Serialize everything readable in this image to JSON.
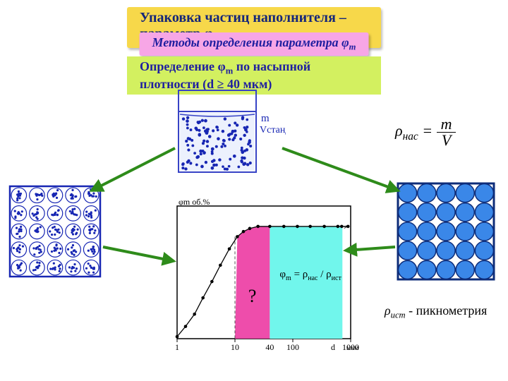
{
  "header": {
    "title": "Упаковка частиц наполнителя  – параметр φ",
    "title_sub": "m",
    "subtitle": "Методы определения параметра φ",
    "subtitle_sub": "m",
    "method_a": "Определение φ",
    "method_sub": "m",
    "method_b": " по насыпной плотности (d ≥ 40 мкм)"
  },
  "beaker": {
    "label_mass": "m",
    "label_vol": "Vстанд",
    "fill_color": "#ffffff",
    "liquid_color": "rgba(200,215,250,.35)",
    "dot_color": "#1726b3",
    "border": "#3743c6"
  },
  "formula_top": {
    "lhs": "ρ",
    "lhs_sub": "нас",
    "rhs_top": "m",
    "rhs_bot": "V"
  },
  "formula_bottom": {
    "lhs": "ρ",
    "lhs_sub": "ист",
    "note": " - пикнометрия"
  },
  "left_panel": {
    "cluster_count": 25,
    "grid": 5,
    "cluster_color": "#1726b3",
    "border": "#1726b3"
  },
  "right_panel": {
    "grid": 5,
    "circle_fill": "#3a87e8",
    "circle_stroke": "#0e2d7a",
    "border": "#0e2d7a",
    "bg": "#ffffff"
  },
  "chart": {
    "type": "line-log-x",
    "x_label": "d",
    "x_unit": "мкм",
    "y_label": "φm  об.%",
    "x_ticks": [
      1,
      10,
      100,
      1000
    ],
    "x_extra_tick": 40,
    "y_range": [
      0,
      65
    ],
    "plateau_y": 55,
    "points": [
      {
        "x": 1,
        "y": 1
      },
      {
        "x": 1.4,
        "y": 6
      },
      {
        "x": 2,
        "y": 12
      },
      {
        "x": 2.8,
        "y": 20
      },
      {
        "x": 4,
        "y": 28
      },
      {
        "x": 5.6,
        "y": 36
      },
      {
        "x": 8,
        "y": 44
      },
      {
        "x": 11,
        "y": 50
      },
      {
        "x": 14,
        "y": 52.5
      },
      {
        "x": 18,
        "y": 54
      },
      {
        "x": 25,
        "y": 55
      },
      {
        "x": 40,
        "y": 55
      },
      {
        "x": 70,
        "y": 55
      },
      {
        "x": 120,
        "y": 55
      },
      {
        "x": 200,
        "y": 55
      },
      {
        "x": 350,
        "y": 55
      },
      {
        "x": 600,
        "y": 55
      },
      {
        "x": 700,
        "y": 55
      },
      {
        "x": 900,
        "y": 55
      }
    ],
    "fill_pink": "#ec3aa2",
    "fill_cyan": "#71f6ec",
    "axis_color": "#000",
    "marker_color": "#000",
    "question": "?",
    "formula": {
      "a": "φ",
      "a_sub": "m",
      "eq": " = ρ",
      "b_sub": "нас",
      "mid": " / ρ",
      "c_sub": "ист"
    },
    "axis_fontsize": 12
  },
  "arrows": {
    "stroke": "#2e8b1a",
    "stroke_width": 4,
    "head": "#2e8b1a"
  }
}
